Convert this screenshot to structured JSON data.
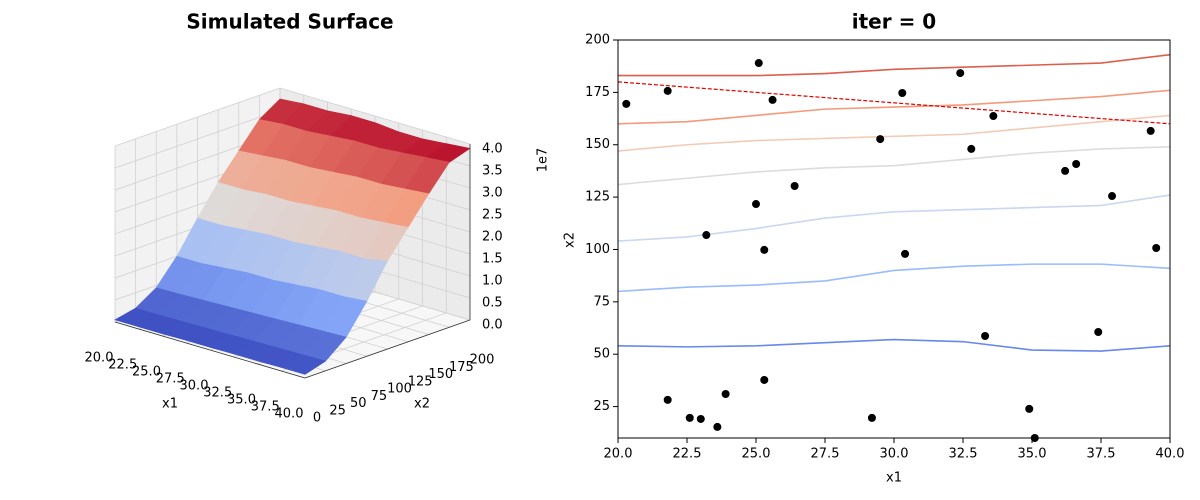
{
  "chart_data": [
    {
      "type": "surface",
      "title": "Simulated Surface",
      "xlabel": "x1",
      "ylabel": "x2",
      "z_offset_label": "1e7",
      "colormap": "coolwarm",
      "x1_values": [
        20,
        22.5,
        25,
        27.5,
        30,
        32.5,
        35,
        37.5,
        40
      ],
      "x2_values": [
        0,
        25,
        50,
        75,
        100,
        125,
        150,
        175,
        200
      ],
      "z": [
        [
          0.05,
          0.05,
          0.05,
          0.06,
          0.06,
          0.07,
          0.07,
          0.08,
          0.08
        ],
        [
          0.15,
          0.15,
          0.16,
          0.17,
          0.18,
          0.19,
          0.2,
          0.21,
          0.22
        ],
        [
          0.45,
          0.46,
          0.48,
          0.5,
          0.52,
          0.54,
          0.56,
          0.58,
          0.6
        ],
        [
          1.0,
          1.0,
          1.05,
          1.1,
          1.1,
          1.15,
          1.2,
          1.2,
          1.25
        ],
        [
          1.7,
          1.7,
          1.75,
          1.8,
          1.8,
          1.85,
          1.9,
          1.9,
          2.0
        ],
        [
          2.35,
          2.35,
          2.4,
          2.4,
          2.45,
          2.5,
          2.5,
          2.55,
          2.6
        ],
        [
          2.9,
          2.95,
          3.0,
          3.0,
          3.05,
          3.1,
          3.1,
          3.15,
          3.2
        ],
        [
          3.45,
          3.5,
          3.5,
          3.55,
          3.6,
          3.6,
          3.65,
          3.7,
          3.75
        ],
        [
          3.75,
          3.8,
          3.8,
          3.85,
          3.85,
          3.8,
          3.8,
          3.85,
          3.9
        ]
      ],
      "xlim": [
        20,
        40
      ],
      "ylim": [
        0,
        200
      ],
      "zlim": [
        0,
        4
      ],
      "xticks": [
        {
          "value": 20,
          "label": "20.0"
        },
        {
          "value": 22.5,
          "label": "22.5"
        },
        {
          "value": 25,
          "label": "25.0"
        },
        {
          "value": 27.5,
          "label": "27.5"
        },
        {
          "value": 30,
          "label": "30.0"
        },
        {
          "value": 32.5,
          "label": "32.5"
        },
        {
          "value": 35,
          "label": "35.0"
        },
        {
          "value": 37.5,
          "label": "37.5"
        },
        {
          "value": 40,
          "label": "40.0"
        }
      ],
      "yticks": [
        0,
        25,
        50,
        75,
        100,
        125,
        150,
        175,
        200
      ],
      "zticks": [
        {
          "value": 0,
          "label": "0.0"
        },
        {
          "value": 0.5,
          "label": "0.5"
        },
        {
          "value": 1,
          "label": "1.0"
        },
        {
          "value": 1.5,
          "label": "1.5"
        },
        {
          "value": 2,
          "label": "2.0"
        },
        {
          "value": 2.5,
          "label": "2.5"
        },
        {
          "value": 3,
          "label": "3.0"
        },
        {
          "value": 3.5,
          "label": "3.5"
        },
        {
          "value": 4,
          "label": "4.0"
        }
      ]
    },
    {
      "type": "contour",
      "title": "iter = 0",
      "xlabel": "x1",
      "ylabel": "x2",
      "xlim": [
        20,
        40
      ],
      "ylim": [
        10,
        200
      ],
      "xticks": [
        {
          "value": 20,
          "label": "20.0"
        },
        {
          "value": 22.5,
          "label": "22.5"
        },
        {
          "value": 25,
          "label": "25.0"
        },
        {
          "value": 27.5,
          "label": "27.5"
        },
        {
          "value": 30,
          "label": "30.0"
        },
        {
          "value": 32.5,
          "label": "32.5"
        },
        {
          "value": 35,
          "label": "35.0"
        },
        {
          "value": 37.5,
          "label": "37.5"
        },
        {
          "value": 40,
          "label": "40.0"
        }
      ],
      "yticks": [
        25,
        50,
        75,
        100,
        125,
        150,
        175,
        200
      ],
      "lines": [
        {
          "color": "#6788ee",
          "x": [
            20,
            22.5,
            25,
            27.5,
            30,
            32.5,
            35,
            37.5,
            40
          ],
          "values": [
            54,
            53.5,
            54,
            55.5,
            57,
            56,
            52,
            51.5,
            54
          ]
        },
        {
          "color": "#9abbff",
          "x": [
            20,
            22.5,
            25,
            27.5,
            30,
            32.5,
            35,
            37.5,
            40
          ],
          "values": [
            80,
            82,
            83,
            85,
            90,
            92,
            93,
            93,
            91
          ]
        },
        {
          "color": "#c9d7f0",
          "x": [
            20,
            22.5,
            25,
            27.5,
            30,
            32.5,
            35,
            37.5,
            40
          ],
          "values": [
            104,
            106,
            110,
            115,
            118,
            119,
            120,
            121,
            126
          ]
        },
        {
          "color": "#dddcdc",
          "x": [
            20,
            22.5,
            25,
            27.5,
            30,
            32.5,
            35,
            37.5,
            40
          ],
          "values": [
            131,
            134,
            137,
            139,
            140,
            143,
            146,
            148,
            149
          ]
        },
        {
          "color": "#f2cbb7",
          "x": [
            20,
            22.5,
            25,
            27.5,
            30,
            32.5,
            35,
            37.5,
            40
          ],
          "values": [
            147,
            150,
            152,
            153,
            154,
            155,
            158,
            161,
            164
          ]
        },
        {
          "color": "#f49a7b",
          "x": [
            20,
            22.5,
            25,
            27.5,
            30,
            32.5,
            35,
            37.5,
            40
          ],
          "values": [
            160,
            161,
            164,
            167,
            168,
            169,
            171,
            173,
            176
          ]
        },
        {
          "color": "#dd5f4b",
          "x": [
            20,
            22.5,
            25,
            27.5,
            30,
            32.5,
            35,
            37.5,
            40
          ],
          "values": [
            183,
            183,
            183,
            184,
            186,
            187,
            188,
            189,
            193
          ]
        }
      ],
      "dashed_line": {
        "color": "#e00000",
        "x": [
          20,
          40
        ],
        "values": [
          180,
          160
        ]
      },
      "points": {
        "color": "#000000",
        "x": [
          20.3,
          21.8,
          25.1,
          25.6,
          29.5,
          30.3,
          32.4,
          33.6,
          32.8,
          39.3,
          36.2,
          36.6,
          37.9,
          39.5,
          26.4,
          25.0,
          23.2,
          25.3,
          30.4,
          33.3,
          37.4,
          21.8,
          22.6,
          23.0,
          23.9,
          23.6,
          25.3,
          29.2,
          34.9,
          35.1
        ],
        "y": [
          169.5,
          175.7,
          189,
          171.4,
          152.7,
          174.7,
          184.2,
          163.7,
          148,
          156.6,
          137.5,
          140.8,
          125.5,
          100.7,
          130.3,
          121.7,
          106.9,
          99.8,
          97.9,
          58.7,
          60.6,
          28.2,
          19.6,
          19.1,
          31,
          15.3,
          37.7,
          19.6,
          23.9,
          10
        ]
      }
    }
  ]
}
